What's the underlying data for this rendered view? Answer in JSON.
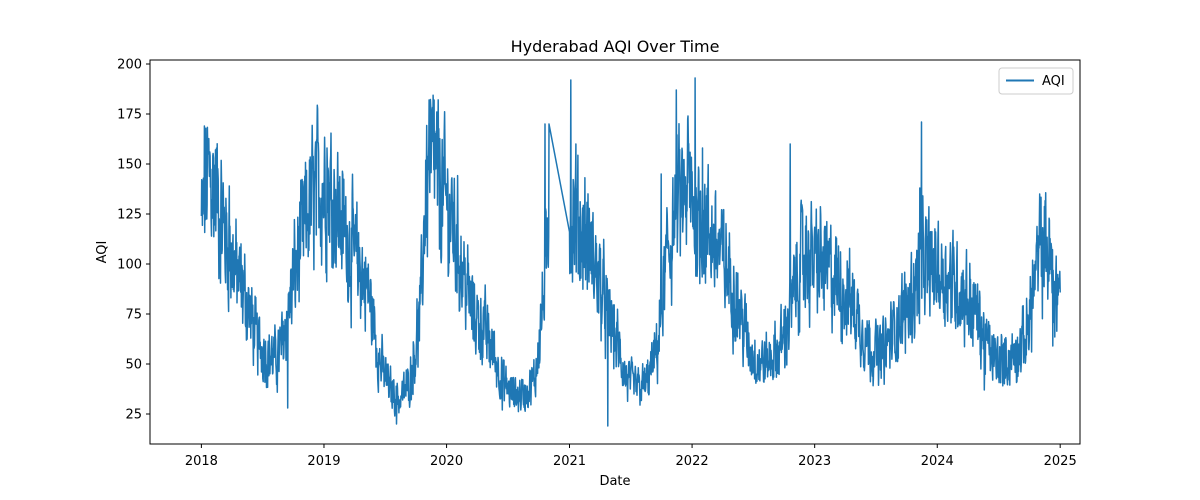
{
  "chart_data": {
    "type": "line",
    "title": "Hyderabad AQI Over Time",
    "xlabel": "Date",
    "ylabel": "AQI",
    "xlim": [
      "2017-08-01",
      "2025-03-01"
    ],
    "ylim": [
      10,
      202
    ],
    "x_ticks": [
      "2018",
      "2019",
      "2020",
      "2021",
      "2022",
      "2023",
      "2024",
      "2025"
    ],
    "y_ticks": [
      25,
      50,
      75,
      100,
      125,
      150,
      175,
      200
    ],
    "grid": false,
    "legend": {
      "position": "top-right",
      "entries": [
        "AQI"
      ]
    },
    "series": [
      {
        "name": "AQI",
        "color": "#1f77b4",
        "x_start": "2018-01-01",
        "x_end": "2025-01-01",
        "gap": {
          "from": "2020-11-01",
          "to": "2021-01-01"
        },
        "anchors": [
          [
            "2018-01-01",
            120
          ],
          [
            "2018-01-20",
            145
          ],
          [
            "2018-02-15",
            135
          ],
          [
            "2018-03-20",
            110
          ],
          [
            "2018-04-15",
            95
          ],
          [
            "2018-05-15",
            82
          ],
          [
            "2018-06-15",
            62
          ],
          [
            "2018-07-15",
            55
          ],
          [
            "2018-08-15",
            52
          ],
          [
            "2018-09-01",
            62
          ],
          [
            "2018-10-01",
            90
          ],
          [
            "2018-10-20",
            108
          ],
          [
            "2018-11-20",
            128
          ],
          [
            "2018-12-20",
            140
          ],
          [
            "2019-01-15",
            140
          ],
          [
            "2019-02-15",
            125
          ],
          [
            "2019-03-15",
            110
          ],
          [
            "2019-04-15",
            100
          ],
          [
            "2019-05-15",
            85
          ],
          [
            "2019-06-15",
            52
          ],
          [
            "2019-07-15",
            38
          ],
          [
            "2019-08-15",
            32
          ],
          [
            "2019-09-15",
            42
          ],
          [
            "2019-10-15",
            75
          ],
          [
            "2019-11-01",
            140
          ],
          [
            "2019-11-20",
            150
          ],
          [
            "2019-12-20",
            135
          ],
          [
            "2020-01-20",
            120
          ],
          [
            "2020-02-20",
            95
          ],
          [
            "2020-03-20",
            75
          ],
          [
            "2020-04-20",
            68
          ],
          [
            "2020-05-20",
            55
          ],
          [
            "2020-06-20",
            40
          ],
          [
            "2020-07-20",
            35
          ],
          [
            "2020-08-20",
            35
          ],
          [
            "2020-09-20",
            42
          ],
          [
            "2020-10-20",
            90
          ],
          [
            "2020-11-01",
            125
          ],
          [
            "2021-01-01",
            125
          ],
          [
            "2021-01-20",
            120
          ],
          [
            "2021-02-20",
            112
          ],
          [
            "2021-03-20",
            98
          ],
          [
            "2021-04-20",
            78
          ],
          [
            "2021-05-20",
            62
          ],
          [
            "2021-06-20",
            42
          ],
          [
            "2021-07-20",
            38
          ],
          [
            "2021-08-20",
            40
          ],
          [
            "2021-09-20",
            58
          ],
          [
            "2021-10-20",
            105
          ],
          [
            "2021-11-20",
            128
          ],
          [
            "2021-12-20",
            135
          ],
          [
            "2022-01-20",
            125
          ],
          [
            "2022-02-20",
            115
          ],
          [
            "2022-03-20",
            108
          ],
          [
            "2022-04-20",
            95
          ],
          [
            "2022-05-20",
            78
          ],
          [
            "2022-06-20",
            58
          ],
          [
            "2022-07-20",
            50
          ],
          [
            "2022-08-20",
            52
          ],
          [
            "2022-09-20",
            58
          ],
          [
            "2022-10-20",
            75
          ],
          [
            "2022-11-20",
            100
          ],
          [
            "2022-12-20",
            102
          ],
          [
            "2023-01-20",
            100
          ],
          [
            "2023-02-20",
            95
          ],
          [
            "2023-03-20",
            88
          ],
          [
            "2023-04-20",
            82
          ],
          [
            "2023-05-20",
            68
          ],
          [
            "2023-06-20",
            58
          ],
          [
            "2023-07-20",
            55
          ],
          [
            "2023-08-20",
            65
          ],
          [
            "2023-09-20",
            75
          ],
          [
            "2023-10-20",
            85
          ],
          [
            "2023-11-20",
            100
          ],
          [
            "2023-12-20",
            98
          ],
          [
            "2024-01-20",
            95
          ],
          [
            "2024-02-20",
            90
          ],
          [
            "2024-03-20",
            85
          ],
          [
            "2024-04-20",
            78
          ],
          [
            "2024-05-20",
            62
          ],
          [
            "2024-06-20",
            52
          ],
          [
            "2024-07-20",
            52
          ],
          [
            "2024-08-20",
            55
          ],
          [
            "2024-09-20",
            62
          ],
          [
            "2024-10-20",
            95
          ],
          [
            "2024-11-20",
            110
          ],
          [
            "2024-12-20",
            85
          ],
          [
            "2025-01-01",
            92
          ]
        ],
        "spikes": [
          [
            "2018-01-10",
            169
          ],
          [
            "2018-01-20",
            155
          ],
          [
            "2018-03-25",
            139
          ],
          [
            "2018-09-15",
            28
          ],
          [
            "2018-12-10",
            162
          ],
          [
            "2019-01-10",
            158
          ],
          [
            "2019-08-05",
            20
          ],
          [
            "2019-11-10",
            182
          ],
          [
            "2019-11-25",
            182
          ],
          [
            "2020-06-15",
            27
          ],
          [
            "2020-10-20",
            170
          ],
          [
            "2020-11-01",
            170
          ],
          [
            "2021-01-05",
            192
          ],
          [
            "2021-01-20",
            160
          ],
          [
            "2021-04-25",
            19
          ],
          [
            "2021-10-01",
            145
          ],
          [
            "2021-11-15",
            187
          ],
          [
            "2021-12-20",
            174
          ],
          [
            "2022-01-10",
            193
          ],
          [
            "2022-02-01",
            158
          ],
          [
            "2022-10-20",
            160
          ],
          [
            "2022-12-05",
            119
          ],
          [
            "2023-11-15",
            171
          ],
          [
            "2023-11-10",
            138
          ],
          [
            "2024-05-20",
            37
          ],
          [
            "2024-11-01",
            135
          ],
          [
            "2024-12-10",
            59
          ]
        ]
      }
    ]
  }
}
